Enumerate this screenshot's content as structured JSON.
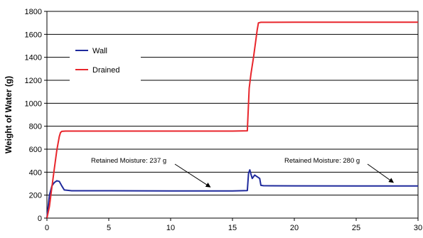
{
  "chart_data": {
    "type": "line",
    "title": "",
    "xlabel": "",
    "ylabel": "Weight of Water (g)",
    "xlim": [
      0,
      30
    ],
    "ylim": [
      0,
      1800
    ],
    "xticks": [
      0,
      5,
      10,
      15,
      20,
      25,
      30
    ],
    "yticks": [
      0,
      200,
      400,
      600,
      800,
      1000,
      1200,
      1400,
      1600,
      1800
    ],
    "grid": "horizontal",
    "legend_position": "upper-left",
    "series": [
      {
        "name": "Wall",
        "color": "#1f2a9c",
        "x": [
          0,
          0.2,
          0.4,
          0.6,
          0.8,
          1.0,
          1.2,
          1.4,
          2,
          5,
          10,
          15,
          16.2,
          16.3,
          16.4,
          16.5,
          16.6,
          16.8,
          17.0,
          17.2,
          17.3,
          17.5,
          20,
          25,
          30
        ],
        "y": [
          0,
          200,
          280,
          310,
          325,
          320,
          280,
          245,
          238,
          238,
          237,
          237,
          240,
          390,
          420,
          380,
          345,
          375,
          360,
          345,
          285,
          282,
          281,
          280,
          280
        ]
      },
      {
        "name": "Drained",
        "color": "#e8262c",
        "x": [
          0,
          0.2,
          0.4,
          0.6,
          0.8,
          1.0,
          1.1,
          1.2,
          1.5,
          5,
          10,
          15,
          16.2,
          16.35,
          16.5,
          16.7,
          16.9,
          17.0,
          17.1,
          17.3,
          20,
          25,
          30
        ],
        "y": [
          0,
          100,
          270,
          430,
          590,
          710,
          745,
          755,
          758,
          758,
          758,
          758,
          760,
          1130,
          1260,
          1400,
          1560,
          1640,
          1700,
          1705,
          1706,
          1706,
          1706
        ]
      }
    ],
    "annotations": [
      {
        "text": "Retained Moisture: 237 g",
        "x": 13.2,
        "y": 240
      },
      {
        "text": "Retained Moisture: 280 g",
        "x": 28.0,
        "y": 280
      }
    ]
  }
}
